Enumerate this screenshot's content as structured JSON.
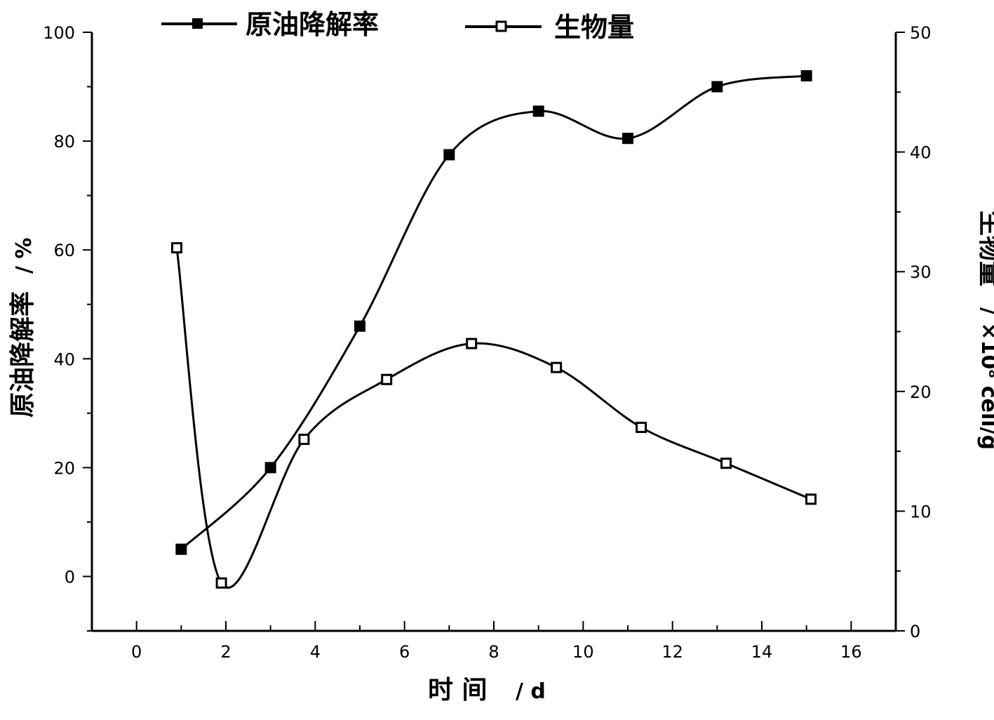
{
  "chart_data": {
    "type": "line",
    "x_axis": {
      "title": "时 间",
      "unit": "/ d",
      "range": [
        -1,
        17
      ],
      "ticks": [
        "0",
        "2",
        "4",
        "6",
        "8",
        "10",
        "12",
        "14",
        "16"
      ]
    },
    "y_left": {
      "title": "原油降解率",
      "unit": "/ %",
      "range": [
        -10,
        100
      ],
      "ticks": [
        "0",
        "20",
        "40",
        "60",
        "80",
        "100"
      ]
    },
    "y_right": {
      "title": "生物量",
      "unit": "/ ×10⁸ cell/g",
      "range": [
        0,
        50
      ],
      "ticks": [
        "0",
        "10",
        "20",
        "30",
        "40",
        "50"
      ]
    },
    "series": [
      {
        "name": "原油降解率",
        "axis": "left",
        "marker": "filled-square",
        "color": "#000000",
        "x": [
          1,
          3,
          5,
          7,
          9,
          11,
          13,
          15
        ],
        "y": [
          5,
          20,
          46,
          77.5,
          85.5,
          80.5,
          90,
          92
        ]
      },
      {
        "name": "生物量",
        "axis": "right",
        "marker": "open-square",
        "color": "#000000",
        "x": [
          0.9,
          1.9,
          3.75,
          5.6,
          7.5,
          9.4,
          11.3,
          13.2,
          15.1
        ],
        "y": [
          32,
          4,
          16,
          21,
          24,
          22,
          17,
          14,
          11
        ]
      }
    ],
    "grid": false,
    "legend_position": "top"
  }
}
